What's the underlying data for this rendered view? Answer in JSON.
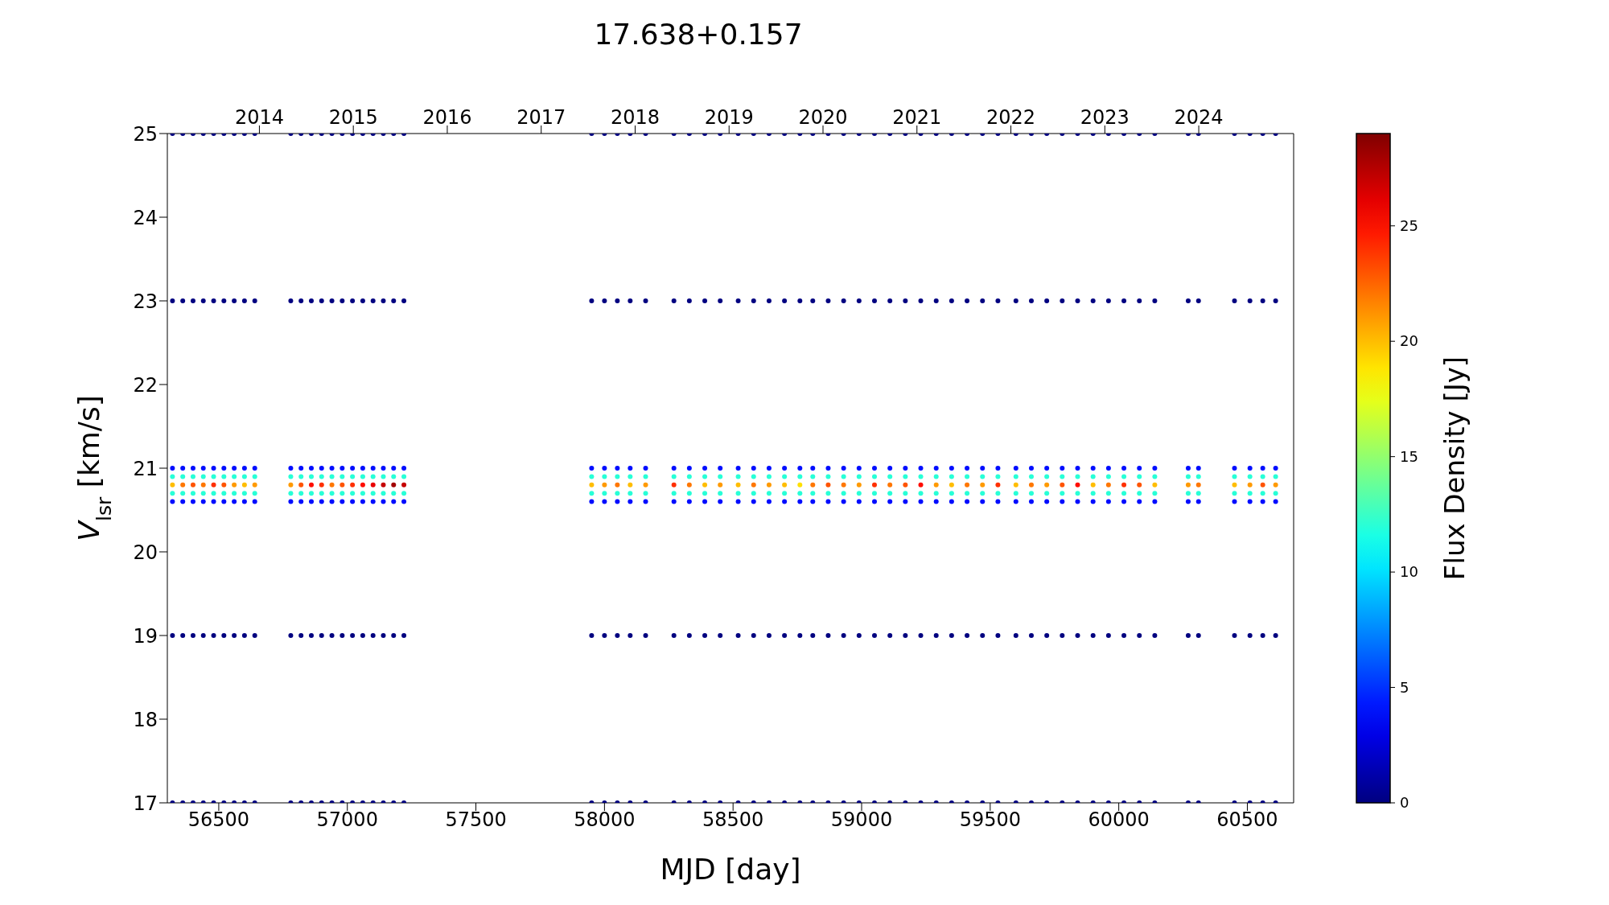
{
  "chart_data": {
    "type": "scatter",
    "title": "17.638+0.157",
    "xlabel": "MJD [day]",
    "ylabel": "V$_{lsr}$ [km/s]",
    "clabel": "Flux Density [Jy]",
    "xlim": [
      56300,
      60680
    ],
    "xticks": [
      56500,
      57000,
      57500,
      58000,
      58500,
      59000,
      59500,
      60000,
      60500
    ],
    "x2lim": [
      2013.02,
      2025.01
    ],
    "x2ticks": [
      2014,
      2015,
      2016,
      2017,
      2018,
      2019,
      2020,
      2021,
      2022,
      2023,
      2024
    ],
    "ylim": [
      17,
      25
    ],
    "yticks": [
      17,
      18,
      19,
      20,
      21,
      22,
      23,
      24,
      25
    ],
    "clim": [
      0,
      29
    ],
    "cticks": [
      0,
      5,
      10,
      15,
      20,
      25
    ],
    "marker": "circle",
    "x": [
      56320,
      56320,
      56320,
      56320,
      56320,
      56320,
      56320,
      56320,
      56320,
      56360,
      56360,
      56360,
      56360,
      56360,
      56360,
      56360,
      56360,
      56360,
      56400,
      56400,
      56400,
      56400,
      56400,
      56400,
      56400,
      56400,
      56400,
      56440,
      56440,
      56440,
      56440,
      56440,
      56440,
      56440,
      56440,
      56440,
      56480,
      56480,
      56480,
      56480,
      56480,
      56480,
      56480,
      56480,
      56480,
      56520,
      56520,
      56520,
      56520,
      56520,
      56520,
      56520,
      56520,
      56520,
      56560,
      56560,
      56560,
      56560,
      56560,
      56560,
      56560,
      56560,
      56560,
      56600,
      56600,
      56600,
      56600,
      56600,
      56600,
      56600,
      56600,
      56600,
      56640,
      56640,
      56640,
      56640,
      56640,
      56640,
      56640,
      56640,
      56640,
      56780,
      56780,
      56780,
      56780,
      56780,
      56780,
      56780,
      56780,
      56780,
      56820,
      56820,
      56820,
      56820,
      56820,
      56820,
      56820,
      56820,
      56820,
      56860,
      56860,
      56860,
      56860,
      56860,
      56860,
      56860,
      56860,
      56860,
      56900,
      56900,
      56900,
      56900,
      56900,
      56900,
      56900,
      56900,
      56900,
      56940,
      56940,
      56940,
      56940,
      56940,
      56940,
      56940,
      56940,
      56940,
      56980,
      56980,
      56980,
      56980,
      56980,
      56980,
      56980,
      56980,
      56980,
      57020,
      57020,
      57020,
      57020,
      57020,
      57020,
      57020,
      57020,
      57020,
      57060,
      57060,
      57060,
      57060,
      57060,
      57060,
      57060,
      57060,
      57060,
      57100,
      57100,
      57100,
      57100,
      57100,
      57100,
      57100,
      57100,
      57100,
      57140,
      57140,
      57140,
      57140,
      57140,
      57140,
      57140,
      57140,
      57140,
      57180,
      57180,
      57180,
      57180,
      57180,
      57180,
      57180,
      57180,
      57180,
      57220,
      57220,
      57220,
      57220,
      57220,
      57220,
      57220,
      57220,
      57220,
      57950,
      57950,
      57950,
      57950,
      57950,
      57950,
      57950,
      57950,
      57950,
      58000,
      58000,
      58000,
      58000,
      58000,
      58000,
      58000,
      58000,
      58000,
      58050,
      58050,
      58050,
      58050,
      58050,
      58050,
      58050,
      58050,
      58050,
      58100,
      58100,
      58100,
      58100,
      58100,
      58100,
      58100,
      58100,
      58100,
      58160,
      58160,
      58160,
      58160,
      58160,
      58160,
      58160,
      58160,
      58160,
      58270,
      58270,
      58270,
      58270,
      58270,
      58270,
      58270,
      58270,
      58270,
      58330,
      58330,
      58330,
      58330,
      58330,
      58330,
      58330,
      58330,
      58330,
      58390,
      58390,
      58390,
      58390,
      58390,
      58390,
      58390,
      58390,
      58390,
      58450,
      58450,
      58450,
      58450,
      58450,
      58450,
      58450,
      58450,
      58450,
      58520,
      58520,
      58520,
      58520,
      58520,
      58520,
      58520,
      58520,
      58520,
      58580,
      58580,
      58580,
      58580,
      58580,
      58580,
      58580,
      58580,
      58580,
      58640,
      58640,
      58640,
      58640,
      58640,
      58640,
      58640,
      58640,
      58640,
      58700,
      58700,
      58700,
      58700,
      58700,
      58700,
      58700,
      58700,
      58700,
      58760,
      58760,
      58760,
      58760,
      58760,
      58760,
      58760,
      58760,
      58760,
      58810,
      58810,
      58810,
      58810,
      58810,
      58810,
      58810,
      58810,
      58810,
      58870,
      58870,
      58870,
      58870,
      58870,
      58870,
      58870,
      58870,
      58870,
      58930,
      58930,
      58930,
      58930,
      58930,
      58930,
      58930,
      58930,
      58930,
      58990,
      58990,
      58990,
      58990,
      58990,
      58990,
      58990,
      58990,
      58990,
      59050,
      59050,
      59050,
      59050,
      59050,
      59050,
      59050,
      59050,
      59050,
      59110,
      59110,
      59110,
      59110,
      59110,
      59110,
      59110,
      59110,
      59110,
      59170,
      59170,
      59170,
      59170,
      59170,
      59170,
      59170,
      59170,
      59170,
      59230,
      59230,
      59230,
      59230,
      59230,
      59230,
      59230,
      59230,
      59230,
      59290,
      59290,
      59290,
      59290,
      59290,
      59290,
      59290,
      59290,
      59290,
      59350,
      59350,
      59350,
      59350,
      59350,
      59350,
      59350,
      59350,
      59350,
      59410,
      59410,
      59410,
      59410,
      59410,
      59410,
      59410,
      59410,
      59410,
      59470,
      59470,
      59470,
      59470,
      59470,
      59470,
      59470,
      59470,
      59470,
      59530,
      59530,
      59530,
      59530,
      59530,
      59530,
      59530,
      59530,
      59530,
      59600,
      59600,
      59600,
      59600,
      59600,
      59600,
      59600,
      59600,
      59600,
      59660,
      59660,
      59660,
      59660,
      59660,
      59660,
      59660,
      59660,
      59660,
      59720,
      59720,
      59720,
      59720,
      59720,
      59720,
      59720,
      59720,
      59720,
      59780,
      59780,
      59780,
      59780,
      59780,
      59780,
      59780,
      59780,
      59780,
      59840,
      59840,
      59840,
      59840,
      59840,
      59840,
      59840,
      59840,
      59840,
      59900,
      59900,
      59900,
      59900,
      59900,
      59900,
      59900,
      59900,
      59900,
      59960,
      59960,
      59960,
      59960,
      59960,
      59960,
      59960,
      59960,
      59960,
      60020,
      60020,
      60020,
      60020,
      60020,
      60020,
      60020,
      60020,
      60020,
      60080,
      60080,
      60080,
      60080,
      60080,
      60080,
      60080,
      60080,
      60080,
      60140,
      60140,
      60140,
      60140,
      60140,
      60140,
      60140,
      60140,
      60140,
      60270,
      60270,
      60270,
      60270,
      60270,
      60270,
      60270,
      60270,
      60270,
      60310,
      60310,
      60310,
      60310,
      60310,
      60310,
      60310,
      60310,
      60310,
      60450,
      60450,
      60450,
      60450,
      60450,
      60450,
      60450,
      60450,
      60450,
      60510,
      60510,
      60510,
      60510,
      60510,
      60510,
      60510,
      60510,
      60510,
      60560,
      60560,
      60560,
      60560,
      60560,
      60560,
      60560,
      60560,
      60560,
      60610,
      60610,
      60610,
      60610,
      60610,
      60610,
      60610,
      60610,
      60610
    ],
    "values": [
      17,
      19,
      20.6,
      20.7,
      20.8,
      20.9,
      21,
      23,
      25,
      17,
      19,
      20.6,
      20.7,
      20.8,
      20.9,
      21,
      23,
      25,
      17,
      19,
      20.6,
      20.7,
      20.8,
      20.9,
      21,
      23,
      25,
      17,
      19,
      20.6,
      20.7,
      20.8,
      20.9,
      21,
      23,
      25,
      17,
      19,
      20.6,
      20.7,
      20.8,
      20.9,
      21,
      23,
      25,
      17,
      19,
      20.6,
      20.7,
      20.8,
      20.9,
      21,
      23,
      25,
      17,
      19,
      20.6,
      20.7,
      20.8,
      20.9,
      21,
      23,
      25,
      17,
      19,
      20.6,
      20.7,
      20.8,
      20.9,
      21,
      23,
      25,
      17,
      19,
      20.6,
      20.7,
      20.8,
      20.9,
      21,
      23,
      25,
      17,
      19,
      20.6,
      20.7,
      20.8,
      20.9,
      21,
      23,
      25,
      17,
      19,
      20.6,
      20.7,
      20.8,
      20.9,
      21,
      23,
      25,
      17,
      19,
      20.6,
      20.7,
      20.8,
      20.9,
      21,
      23,
      25,
      17,
      19,
      20.6,
      20.7,
      20.8,
      20.9,
      21,
      23,
      25,
      17,
      19,
      20.6,
      20.7,
      20.8,
      20.9,
      21,
      23,
      25,
      17,
      19,
      20.6,
      20.7,
      20.8,
      20.9,
      21,
      23,
      25,
      17,
      19,
      20.6,
      20.7,
      20.8,
      20.9,
      21,
      23,
      25,
      17,
      19,
      20.6,
      20.7,
      20.8,
      20.9,
      21,
      23,
      25,
      17,
      19,
      20.6,
      20.7,
      20.8,
      20.9,
      21,
      23,
      25,
      17,
      19,
      20.6,
      20.7,
      20.8,
      20.9,
      21,
      23,
      25,
      17,
      19,
      20.6,
      20.7,
      20.8,
      20.9,
      21,
      23,
      25,
      17,
      19,
      20.6,
      20.7,
      20.8,
      20.9,
      21,
      23,
      25,
      17,
      19,
      20.6,
      20.7,
      20.8,
      20.9,
      21,
      23,
      25,
      17,
      19,
      20.6,
      20.7,
      20.8,
      20.9,
      21,
      23,
      25,
      17,
      19,
      20.6,
      20.7,
      20.8,
      20.9,
      21,
      23,
      25,
      17,
      19,
      20.6,
      20.7,
      20.8,
      20.9,
      21,
      23,
      25,
      17,
      19,
      20.6,
      20.7,
      20.8,
      20.9,
      21,
      23,
      25,
      17,
      19,
      20.6,
      20.7,
      20.8,
      20.9,
      21,
      23,
      25,
      17,
      19,
      20.6,
      20.7,
      20.8,
      20.9,
      21,
      23,
      25,
      17,
      19,
      20.6,
      20.7,
      20.8,
      20.9,
      21,
      23,
      25,
      17,
      19,
      20.6,
      20.7,
      20.8,
      20.9,
      21,
      23,
      25,
      17,
      19,
      20.6,
      20.7,
      20.8,
      20.9,
      21,
      23,
      25,
      17,
      19,
      20.6,
      20.7,
      20.8,
      20.9,
      21,
      23,
      25,
      17,
      19,
      20.6,
      20.7,
      20.8,
      20.9,
      21,
      23,
      25,
      17,
      19,
      20.6,
      20.7,
      20.8,
      20.9,
      21,
      23,
      25,
      17,
      19,
      20.6,
      20.7,
      20.8,
      20.9,
      21,
      23,
      25,
      17,
      19,
      20.6,
      20.7,
      20.8,
      20.9,
      21,
      23,
      25,
      17,
      19,
      20.6,
      20.7,
      20.8,
      20.9,
      21,
      23,
      25,
      17,
      19,
      20.6,
      20.7,
      20.8,
      20.9,
      21,
      23,
      25,
      17,
      19,
      20.6,
      20.7,
      20.8,
      20.9,
      21,
      23,
      25,
      17,
      19,
      20.6,
      20.7,
      20.8,
      20.9,
      21,
      23,
      25,
      17,
      19,
      20.6,
      20.7,
      20.8,
      20.9,
      21,
      23,
      25,
      17,
      19,
      20.6,
      20.7,
      20.8,
      20.9,
      21,
      23,
      25,
      17,
      19,
      20.6,
      20.7,
      20.8,
      20.9,
      21,
      23,
      25,
      17,
      19,
      20.6,
      20.7,
      20.8,
      20.9,
      21,
      23,
      25,
      17,
      19,
      20.6,
      20.7,
      20.8,
      20.9,
      21,
      23,
      25,
      17,
      19,
      20.6,
      20.7,
      20.8,
      20.9,
      21,
      23,
      25,
      17,
      19,
      20.6,
      20.7,
      20.8,
      20.9,
      21,
      23,
      25,
      17,
      19,
      20.6,
      20.7,
      20.8,
      20.9,
      21,
      23,
      25,
      17,
      19,
      20.6,
      20.7,
      20.8,
      20.9,
      21,
      23,
      25,
      17,
      19,
      20.6,
      20.7,
      20.8,
      20.9,
      21,
      23,
      25,
      17,
      19,
      20.6,
      20.7,
      20.8,
      20.9,
      21,
      23,
      25,
      17,
      19,
      20.6,
      20.7,
      20.8,
      20.9,
      21,
      23,
      25,
      17,
      19,
      20.6,
      20.7,
      20.8,
      20.9,
      21,
      23,
      25,
      17,
      19,
      20.6,
      20.7,
      20.8,
      20.9,
      21,
      23,
      25,
      17,
      19,
      20.6,
      20.7,
      20.8,
      20.9,
      21,
      23,
      25,
      17,
      19,
      20.6,
      20.7,
      20.8,
      20.9,
      21,
      23,
      25,
      17,
      19,
      20.6,
      20.7,
      20.8,
      20.9,
      21,
      23,
      25,
      17,
      19,
      20.6,
      20.7,
      20.8,
      20.9,
      21,
      23,
      25,
      17,
      19,
      20.6,
      20.7,
      20.8,
      20.9,
      21,
      23,
      25,
      17,
      19,
      20.6,
      20.7,
      20.8,
      20.9,
      21,
      23,
      25,
      17,
      19,
      20.6,
      20.7,
      20.8,
      20.9,
      21,
      23,
      25,
      17,
      19,
      20.6,
      20.7,
      20.8,
      20.9,
      21,
      23,
      25,
      17,
      19,
      20.6,
      20.7,
      20.8,
      20.9,
      21,
      23,
      25,
      17,
      19,
      20.6,
      20.7,
      20.8,
      20.9,
      21,
      23,
      25
    ],
    "cvalues": [
      0,
      0,
      4,
      12,
      20,
      12,
      4,
      0,
      0,
      0,
      0,
      4,
      12,
      22,
      12,
      4,
      0,
      0,
      0,
      0,
      4,
      12,
      23,
      12,
      4,
      0,
      0,
      0,
      0,
      4,
      12,
      22,
      12,
      4,
      0,
      0,
      0,
      0,
      4,
      12,
      24,
      12,
      4,
      0,
      0,
      0,
      0,
      4,
      12,
      23,
      12,
      4,
      0,
      0,
      0,
      0,
      4,
      12,
      21,
      12,
      4,
      0,
      0,
      0,
      0,
      4,
      12,
      20,
      12,
      4,
      0,
      0,
      0,
      0,
      4,
      12,
      21,
      12,
      4,
      0,
      0,
      0,
      0,
      4,
      12,
      21,
      12,
      4,
      0,
      0,
      0,
      0,
      4,
      12,
      23,
      12,
      4,
      0,
      0,
      0,
      0,
      4,
      12,
      25,
      12,
      4,
      0,
      0,
      0,
      0,
      4,
      12,
      24,
      12,
      4,
      0,
      0,
      0,
      0,
      4,
      12,
      22,
      12,
      4,
      0,
      0,
      0,
      0,
      4,
      12,
      23,
      12,
      4,
      0,
      0,
      0,
      0,
      4,
      12,
      24,
      12,
      4,
      0,
      0,
      0,
      0,
      4,
      12,
      25,
      12,
      4,
      0,
      0,
      0,
      0,
      4,
      12,
      26,
      12,
      4,
      0,
      0,
      0,
      0,
      4,
      12,
      27,
      12,
      4,
      0,
      0,
      0,
      0,
      4,
      12,
      28,
      12,
      4,
      0,
      0,
      0,
      0,
      4,
      12,
      27,
      12,
      4,
      0,
      0,
      0,
      0,
      4,
      12,
      20,
      12,
      4,
      0,
      0,
      0,
      0,
      4,
      12,
      21,
      12,
      4,
      0,
      0,
      0,
      0,
      4,
      12,
      22,
      12,
      4,
      0,
      0,
      0,
      0,
      4,
      12,
      20,
      12,
      4,
      0,
      0,
      0,
      0,
      4,
      12,
      21,
      12,
      4,
      0,
      0,
      0,
      0,
      4,
      12,
      24,
      12,
      4,
      0,
      0,
      0,
      0,
      4,
      12,
      22,
      12,
      4,
      0,
      0,
      0,
      0,
      4,
      12,
      20,
      12,
      4,
      0,
      0,
      0,
      0,
      4,
      12,
      21,
      12,
      4,
      0,
      0,
      0,
      0,
      4,
      12,
      20,
      12,
      4,
      0,
      0,
      0,
      0,
      4,
      12,
      22,
      12,
      4,
      0,
      0,
      0,
      0,
      4,
      12,
      21,
      12,
      4,
      0,
      0,
      0,
      0,
      4,
      12,
      20,
      12,
      4,
      0,
      0,
      0,
      0,
      4,
      12,
      19,
      12,
      4,
      0,
      0,
      0,
      0,
      4,
      12,
      22,
      12,
      4,
      0,
      0,
      0,
      0,
      4,
      12,
      23,
      12,
      4,
      0,
      0,
      0,
      0,
      4,
      12,
      22,
      12,
      4,
      0,
      0,
      0,
      0,
      4,
      12,
      21,
      12,
      4,
      0,
      0,
      0,
      0,
      4,
      12,
      24,
      12,
      4,
      0,
      0,
      0,
      0,
      4,
      12,
      22,
      12,
      4,
      0,
      0,
      0,
      0,
      4,
      12,
      23,
      12,
      4,
      0,
      0,
      0,
      0,
      4,
      12,
      25,
      12,
      4,
      0,
      0,
      0,
      0,
      4,
      12,
      21,
      12,
      4,
      0,
      0,
      0,
      0,
      4,
      12,
      20,
      12,
      4,
      0,
      0,
      0,
      0,
      4,
      12,
      22,
      12,
      4,
      0,
      0,
      0,
      0,
      4,
      12,
      21,
      12,
      4,
      0,
      0,
      0,
      0,
      4,
      12,
      24,
      12,
      4,
      0,
      0,
      0,
      0,
      4,
      12,
      20,
      12,
      4,
      0,
      0,
      0,
      0,
      4,
      12,
      22,
      12,
      4,
      0,
      0,
      0,
      0,
      4,
      12,
      21,
      12,
      4,
      0,
      0,
      0,
      0,
      4,
      12,
      23,
      12,
      4,
      0,
      0,
      0,
      0,
      4,
      12,
      25,
      12,
      4,
      0,
      0,
      0,
      0,
      4,
      12,
      20,
      12,
      4,
      0,
      0,
      0,
      0,
      4,
      12,
      22,
      12,
      4,
      0,
      0,
      0,
      0,
      4,
      12,
      24,
      12,
      4,
      0,
      0,
      0,
      0,
      4,
      12,
      23,
      12,
      4,
      0,
      0,
      0,
      0,
      4,
      12,
      20,
      12,
      4,
      0,
      0,
      0,
      0,
      4,
      12,
      21,
      12,
      4,
      0,
      0,
      0,
      0,
      4,
      12,
      22,
      12,
      4,
      0,
      0,
      0,
      0,
      4,
      12,
      20,
      12,
      4,
      0,
      0,
      0,
      0,
      4,
      12,
      21,
      12,
      4,
      0,
      0,
      0,
      0,
      4,
      12,
      23,
      12,
      4,
      0,
      0,
      0,
      0,
      4,
      12,
      21,
      12,
      4,
      0,
      0
    ]
  }
}
